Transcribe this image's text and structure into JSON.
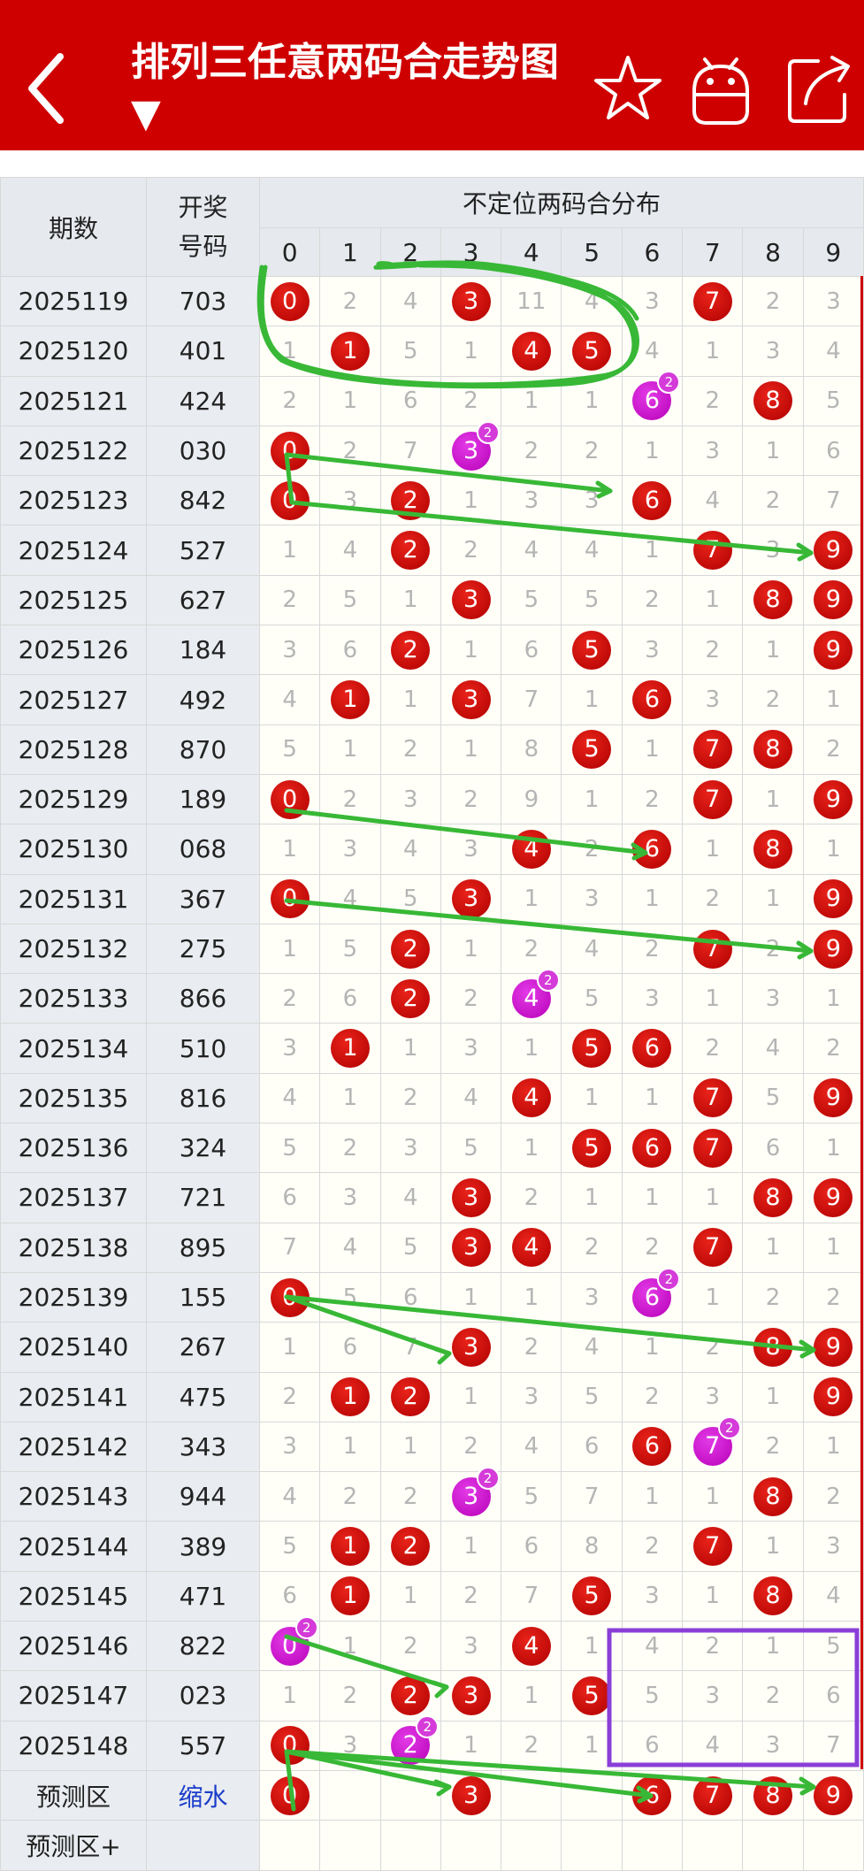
{
  "header": {
    "title": "排列三任意两码合走势图 ▼",
    "bg_color": "#cf0000",
    "icons": [
      "back-icon",
      "star-icon",
      "android-icon",
      "share-icon"
    ]
  },
  "table": {
    "col_issue": "期数",
    "col_number_line1": "开奖",
    "col_number_line2": "号码",
    "col_distribution": "不定位两码合分布",
    "digits": [
      "0",
      "1",
      "2",
      "3",
      "4",
      "5",
      "6",
      "7",
      "8",
      "9"
    ],
    "rows": [
      {
        "issue": "2025119",
        "num": "703",
        "cells": [
          "0",
          "2",
          "4",
          "3",
          "11",
          "4",
          "3",
          "7",
          "2",
          "3"
        ],
        "hits": [
          0,
          3,
          7
        ],
        "doubles": []
      },
      {
        "issue": "2025120",
        "num": "401",
        "cells": [
          "1",
          "1",
          "5",
          "1",
          "4",
          "5",
          "4",
          "1",
          "3",
          "4"
        ],
        "hits": [
          1,
          4,
          5
        ],
        "doubles": []
      },
      {
        "issue": "2025121",
        "num": "424",
        "cells": [
          "2",
          "1",
          "6",
          "2",
          "1",
          "1",
          "6",
          "2",
          "8",
          "5"
        ],
        "hits": [
          6,
          8
        ],
        "doubles": [
          6
        ]
      },
      {
        "issue": "2025122",
        "num": "030",
        "cells": [
          "0",
          "2",
          "7",
          "3",
          "2",
          "2",
          "1",
          "3",
          "1",
          "6"
        ],
        "hits": [
          0,
          3
        ],
        "doubles": [
          3
        ]
      },
      {
        "issue": "2025123",
        "num": "842",
        "cells": [
          "0",
          "3",
          "2",
          "1",
          "3",
          "3",
          "6",
          "4",
          "2",
          "7"
        ],
        "hits": [
          0,
          2,
          6
        ],
        "doubles": []
      },
      {
        "issue": "2025124",
        "num": "527",
        "cells": [
          "1",
          "4",
          "2",
          "2",
          "4",
          "4",
          "1",
          "7",
          "3",
          "9"
        ],
        "hits": [
          2,
          7,
          9
        ],
        "doubles": []
      },
      {
        "issue": "2025125",
        "num": "627",
        "cells": [
          "2",
          "5",
          "1",
          "3",
          "5",
          "5",
          "2",
          "1",
          "8",
          "9"
        ],
        "hits": [
          3,
          8,
          9
        ],
        "doubles": []
      },
      {
        "issue": "2025126",
        "num": "184",
        "cells": [
          "3",
          "6",
          "2",
          "1",
          "6",
          "5",
          "3",
          "2",
          "1",
          "9"
        ],
        "hits": [
          2,
          5,
          9
        ],
        "doubles": []
      },
      {
        "issue": "2025127",
        "num": "492",
        "cells": [
          "4",
          "1",
          "1",
          "3",
          "7",
          "1",
          "6",
          "3",
          "2",
          "1"
        ],
        "hits": [
          1,
          3,
          6
        ],
        "doubles": []
      },
      {
        "issue": "2025128",
        "num": "870",
        "cells": [
          "5",
          "1",
          "2",
          "1",
          "8",
          "5",
          "1",
          "7",
          "8",
          "2"
        ],
        "hits": [
          5,
          7,
          8
        ],
        "doubles": []
      },
      {
        "issue": "2025129",
        "num": "189",
        "cells": [
          "0",
          "2",
          "3",
          "2",
          "9",
          "1",
          "2",
          "7",
          "1",
          "9"
        ],
        "hits": [
          0,
          7,
          9
        ],
        "doubles": []
      },
      {
        "issue": "2025130",
        "num": "068",
        "cells": [
          "1",
          "3",
          "4",
          "3",
          "4",
          "2",
          "6",
          "1",
          "8",
          "1"
        ],
        "hits": [
          4,
          6,
          8
        ],
        "doubles": []
      },
      {
        "issue": "2025131",
        "num": "367",
        "cells": [
          "0",
          "4",
          "5",
          "3",
          "1",
          "3",
          "1",
          "2",
          "1",
          "9"
        ],
        "hits": [
          0,
          3,
          9
        ],
        "doubles": []
      },
      {
        "issue": "2025132",
        "num": "275",
        "cells": [
          "1",
          "5",
          "2",
          "1",
          "2",
          "4",
          "2",
          "7",
          "2",
          "9"
        ],
        "hits": [
          2,
          7,
          9
        ],
        "doubles": []
      },
      {
        "issue": "2025133",
        "num": "866",
        "cells": [
          "2",
          "6",
          "2",
          "2",
          "4",
          "5",
          "3",
          "1",
          "3",
          "1"
        ],
        "hits": [
          2,
          4
        ],
        "doubles": [
          4
        ]
      },
      {
        "issue": "2025134",
        "num": "510",
        "cells": [
          "3",
          "1",
          "1",
          "3",
          "1",
          "5",
          "6",
          "2",
          "4",
          "2"
        ],
        "hits": [
          1,
          5,
          6
        ],
        "doubles": []
      },
      {
        "issue": "2025135",
        "num": "816",
        "cells": [
          "4",
          "1",
          "2",
          "4",
          "4",
          "1",
          "1",
          "7",
          "5",
          "9"
        ],
        "hits": [
          4,
          7,
          9
        ],
        "doubles": []
      },
      {
        "issue": "2025136",
        "num": "324",
        "cells": [
          "5",
          "2",
          "3",
          "5",
          "1",
          "5",
          "6",
          "7",
          "6",
          "1"
        ],
        "hits": [
          5,
          6,
          7
        ],
        "doubles": []
      },
      {
        "issue": "2025137",
        "num": "721",
        "cells": [
          "6",
          "3",
          "4",
          "3",
          "2",
          "1",
          "1",
          "1",
          "8",
          "9"
        ],
        "hits": [
          3,
          8,
          9
        ],
        "doubles": []
      },
      {
        "issue": "2025138",
        "num": "895",
        "cells": [
          "7",
          "4",
          "5",
          "3",
          "4",
          "2",
          "2",
          "7",
          "1",
          "1"
        ],
        "hits": [
          3,
          4,
          7
        ],
        "doubles": []
      },
      {
        "issue": "2025139",
        "num": "155",
        "cells": [
          "0",
          "5",
          "6",
          "1",
          "1",
          "3",
          "6",
          "1",
          "2",
          "2"
        ],
        "hits": [
          0,
          6
        ],
        "doubles": [
          6
        ]
      },
      {
        "issue": "2025140",
        "num": "267",
        "cells": [
          "1",
          "6",
          "7",
          "3",
          "2",
          "4",
          "1",
          "2",
          "8",
          "9"
        ],
        "hits": [
          3,
          8,
          9
        ],
        "doubles": []
      },
      {
        "issue": "2025141",
        "num": "475",
        "cells": [
          "2",
          "1",
          "2",
          "1",
          "3",
          "5",
          "2",
          "3",
          "1",
          "9"
        ],
        "hits": [
          1,
          2,
          9
        ],
        "doubles": []
      },
      {
        "issue": "2025142",
        "num": "343",
        "cells": [
          "3",
          "1",
          "1",
          "2",
          "4",
          "6",
          "6",
          "7",
          "2",
          "1"
        ],
        "hits": [
          6,
          7
        ],
        "doubles": [
          7
        ]
      },
      {
        "issue": "2025143",
        "num": "944",
        "cells": [
          "4",
          "2",
          "2",
          "3",
          "5",
          "7",
          "1",
          "1",
          "8",
          "2"
        ],
        "hits": [
          3,
          8
        ],
        "doubles": [
          3
        ]
      },
      {
        "issue": "2025144",
        "num": "389",
        "cells": [
          "5",
          "1",
          "2",
          "1",
          "6",
          "8",
          "2",
          "7",
          "1",
          "3"
        ],
        "hits": [
          1,
          2,
          7
        ],
        "doubles": []
      },
      {
        "issue": "2025145",
        "num": "471",
        "cells": [
          "6",
          "1",
          "1",
          "2",
          "7",
          "5",
          "3",
          "1",
          "8",
          "4"
        ],
        "hits": [
          1,
          5,
          8
        ],
        "doubles": []
      },
      {
        "issue": "2025146",
        "num": "822",
        "cells": [
          "0",
          "1",
          "2",
          "3",
          "4",
          "1",
          "4",
          "2",
          "1",
          "5"
        ],
        "hits": [
          0,
          4
        ],
        "doubles": [
          0
        ]
      },
      {
        "issue": "2025147",
        "num": "023",
        "cells": [
          "1",
          "2",
          "2",
          "3",
          "1",
          "5",
          "5",
          "3",
          "2",
          "6"
        ],
        "hits": [
          2,
          3,
          5
        ],
        "doubles": []
      },
      {
        "issue": "2025148",
        "num": "557",
        "cells": [
          "0",
          "3",
          "2",
          "1",
          "2",
          "1",
          "6",
          "4",
          "3",
          "7"
        ],
        "hits": [
          0,
          2
        ],
        "doubles": [
          2
        ]
      }
    ],
    "predict_label": "预测区",
    "predict_value": "缩水",
    "predict_cells": [
      "0",
      "",
      "",
      "3",
      "",
      "",
      "6",
      "7",
      "8",
      "9"
    ],
    "predict_hits": [
      0,
      3,
      6,
      7,
      8,
      9
    ],
    "predict_plus_label": "预测区+",
    "double_badge": "2"
  }
}
